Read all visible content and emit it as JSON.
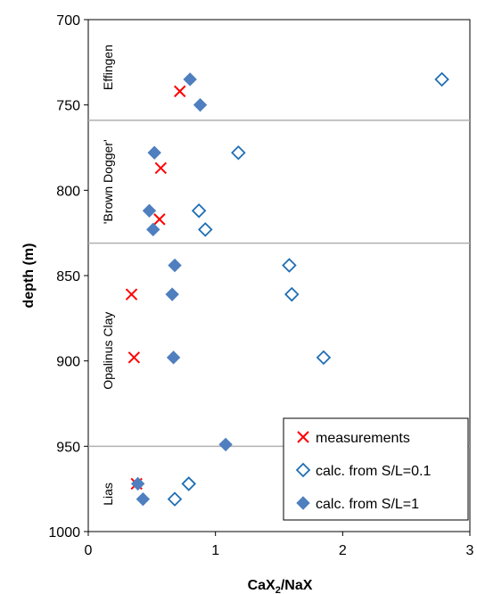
{
  "chart_data": {
    "type": "scatter",
    "title": "",
    "xlabel": {
      "main": "CaX",
      "sub": "2",
      "rest": "/NaX"
    },
    "ylabel": "depth (m)",
    "xlim": [
      0,
      3
    ],
    "ylim": [
      700,
      1000
    ],
    "y_inverted": true,
    "x_ticks": [
      "0",
      "1",
      "2",
      "3"
    ],
    "y_ticks": [
      "700",
      "750",
      "800",
      "850",
      "900",
      "950",
      "1000"
    ],
    "boundaries": [
      759,
      831,
      950
    ],
    "units": [
      {
        "label": "Effingen",
        "depth": 728
      },
      {
        "label": "'Brown Dogger'",
        "depth": 795
      },
      {
        "label": "Opalinus Clay",
        "depth": 894
      },
      {
        "label": "Lias",
        "depth": 978
      }
    ],
    "legend_position": "bottom-right",
    "colors": {
      "measurements": "#ff0000",
      "calc01": "#1f6fb4",
      "calc1": "#4f7fbf",
      "boundary": "#b0b0b0"
    },
    "series": [
      {
        "name": "measurements",
        "marker": "x",
        "points": [
          [
            0.72,
            742
          ],
          [
            0.57,
            787
          ],
          [
            0.56,
            817
          ],
          [
            0.34,
            861
          ],
          [
            0.36,
            898
          ],
          [
            0.38,
            972
          ]
        ]
      },
      {
        "name": "calc. from S/L=0.1",
        "marker": "diamond-open",
        "points": [
          [
            2.78,
            735
          ],
          [
            1.18,
            778
          ],
          [
            0.87,
            812
          ],
          [
            0.92,
            823
          ],
          [
            1.58,
            844
          ],
          [
            1.6,
            861
          ],
          [
            1.85,
            898
          ],
          [
            0.79,
            972
          ],
          [
            0.68,
            981
          ]
        ]
      },
      {
        "name": "calc. from S/L=1",
        "marker": "diamond-filled",
        "points": [
          [
            0.8,
            735
          ],
          [
            0.88,
            750
          ],
          [
            0.52,
            778
          ],
          [
            0.48,
            812
          ],
          [
            0.51,
            823
          ],
          [
            0.68,
            844
          ],
          [
            0.66,
            861
          ],
          [
            0.67,
            898
          ],
          [
            1.08,
            949
          ],
          [
            0.39,
            972
          ],
          [
            0.43,
            981
          ]
        ]
      }
    ]
  }
}
